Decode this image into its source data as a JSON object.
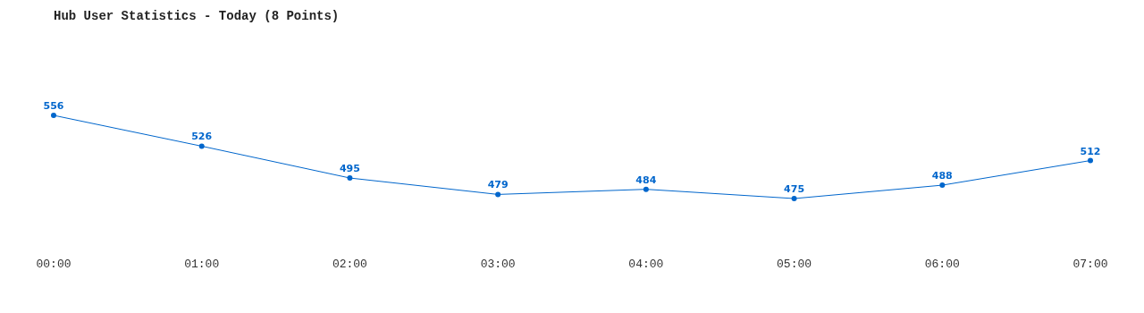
{
  "chart_data": {
    "type": "line",
    "title": "Hub User Statistics - Today (8 Points)",
    "categories": [
      "00:00",
      "01:00",
      "02:00",
      "03:00",
      "04:00",
      "05:00",
      "06:00",
      "07:00"
    ],
    "series": [
      {
        "color": "#0066cc",
        "values": [
          556,
          526,
          495,
          479,
          484,
          475,
          488,
          512
        ]
      }
    ],
    "data_labels": true,
    "marker": "circle",
    "tick_labels": "x"
  }
}
